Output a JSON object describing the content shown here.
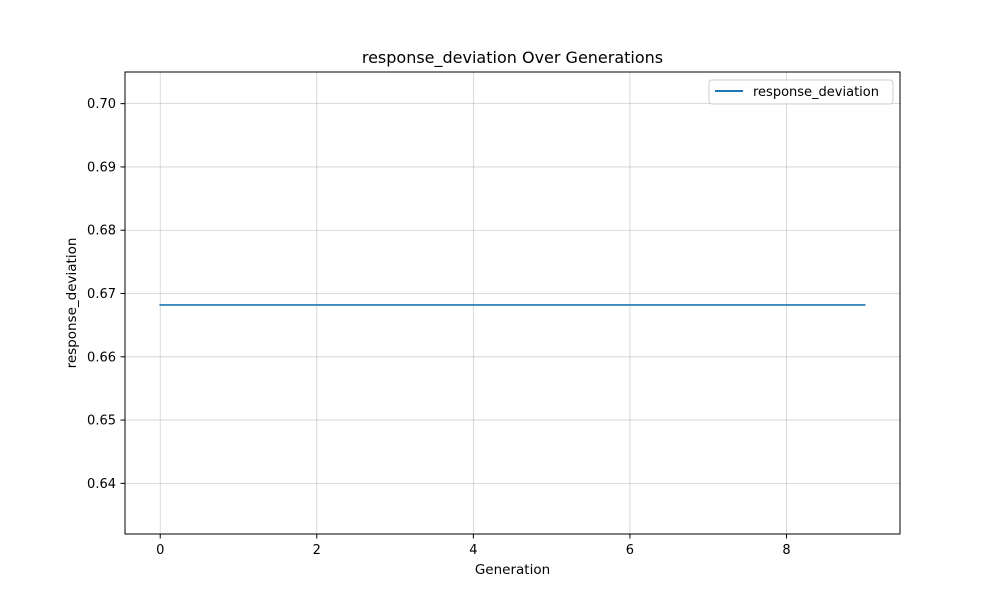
{
  "chart_data": {
    "type": "line",
    "title": "response_deviation Over Generations",
    "xlabel": "Generation",
    "ylabel": "response_deviation",
    "xlim": [
      -0.45,
      9.45
    ],
    "ylim": [
      0.632,
      0.705
    ],
    "xticks": [
      0,
      2,
      4,
      6,
      8
    ],
    "xtick_labels": [
      "0",
      "2",
      "4",
      "6",
      "8"
    ],
    "yticks": [
      0.64,
      0.65,
      0.66,
      0.67,
      0.68,
      0.69,
      0.7
    ],
    "ytick_labels": [
      "0.64",
      "0.65",
      "0.66",
      "0.67",
      "0.68",
      "0.69",
      "0.70"
    ],
    "grid": true,
    "legend": "top-right",
    "x": [
      0,
      1,
      2,
      3,
      4,
      5,
      6,
      7,
      8,
      9
    ],
    "series": [
      {
        "name": "response_deviation",
        "color": "#1f77b4",
        "values": [
          0.6682,
          0.6682,
          0.6682,
          0.6682,
          0.6682,
          0.6682,
          0.6682,
          0.6682,
          0.6682,
          0.6682
        ]
      }
    ]
  }
}
